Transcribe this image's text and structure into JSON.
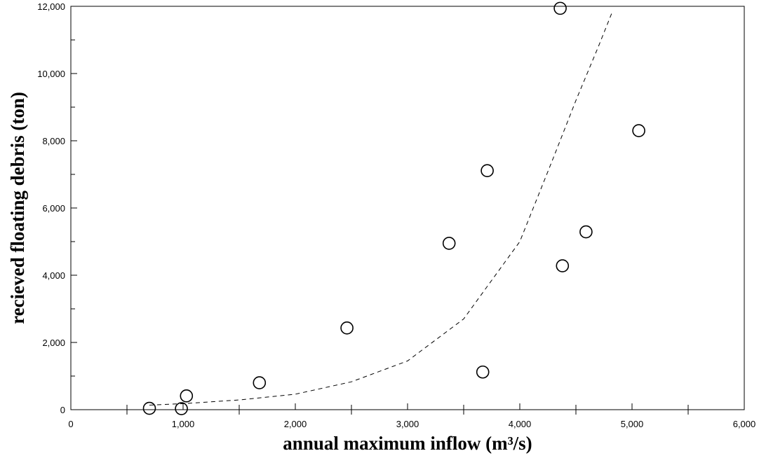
{
  "chart_data": {
    "type": "scatter",
    "title": "",
    "xlabel": "annual maximum inflow (m³/s)",
    "ylabel": "recieved floating debris (ton)",
    "xlim": [
      0,
      6000
    ],
    "ylim": [
      0,
      12000
    ],
    "x_ticks": [
      0,
      1000,
      2000,
      3000,
      4000,
      5000,
      6000
    ],
    "y_ticks": [
      0,
      2000,
      4000,
      6000,
      8000,
      10000,
      12000
    ],
    "x_tick_labels": [
      "0",
      "1,000",
      "2,000",
      "3,000",
      "4,000",
      "5,000",
      "6,000"
    ],
    "y_tick_labels": [
      "0",
      "2,000",
      "4,000",
      "6,000",
      "8,000",
      "10,000",
      "12,000"
    ],
    "grid": false,
    "marker": "open-circle",
    "points": [
      {
        "x": 700,
        "y": 40
      },
      {
        "x": 985,
        "y": 30
      },
      {
        "x": 1030,
        "y": 410
      },
      {
        "x": 1680,
        "y": 800
      },
      {
        "x": 2460,
        "y": 2430
      },
      {
        "x": 3370,
        "y": 4950
      },
      {
        "x": 3670,
        "y": 1120
      },
      {
        "x": 3710,
        "y": 7110
      },
      {
        "x": 4360,
        "y": 11940
      },
      {
        "x": 4380,
        "y": 4280
      },
      {
        "x": 4590,
        "y": 5290
      },
      {
        "x": 5060,
        "y": 8300
      }
    ],
    "trend_line": {
      "style": "dashed",
      "points": [
        {
          "x": 700,
          "y": 135
        },
        {
          "x": 1000,
          "y": 180
        },
        {
          "x": 1500,
          "y": 290
        },
        {
          "x": 2000,
          "y": 460
        },
        {
          "x": 2500,
          "y": 830
        },
        {
          "x": 3000,
          "y": 1450
        },
        {
          "x": 3500,
          "y": 2700
        },
        {
          "x": 4000,
          "y": 5000
        },
        {
          "x": 4300,
          "y": 7500
        },
        {
          "x": 4500,
          "y": 9200
        },
        {
          "x": 4700,
          "y": 10800
        },
        {
          "x": 4820,
          "y": 11800
        }
      ]
    }
  }
}
